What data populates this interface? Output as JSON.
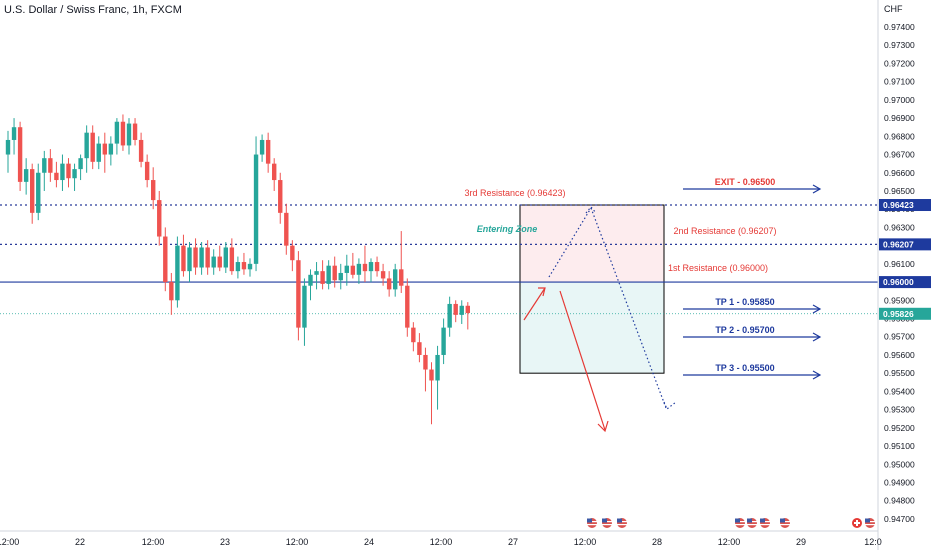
{
  "header": {
    "title": "U.S. Dollar / Swiss Franc, 1h, FXCM"
  },
  "colors": {
    "up": "#26a69a",
    "down": "#ef5350",
    "axis_text": "#131722",
    "blue": "#1e3a9e",
    "red": "#e53935",
    "teal": "#26a69a",
    "zone_upper": "#fdecee",
    "zone_lower": "#e8f6f6",
    "grid_dots": "#2a3c9a"
  },
  "chart_data": {
    "type": "candlestick",
    "title": "U.S. Dollar / Swiss Franc, 1h, FXCM",
    "currency": "CHF",
    "ylim": [
      0.9465,
      0.975
    ],
    "y_ticks": [
      "0.97400",
      "0.97300",
      "0.97200",
      "0.97100",
      "0.97000",
      "0.96900",
      "0.96800",
      "0.96700",
      "0.96600",
      "0.96500",
      "0.96400",
      "0.96300",
      "0.96200",
      "0.96100",
      "0.96000",
      "0.95900",
      "0.95800",
      "0.95700",
      "0.95600",
      "0.95500",
      "0.95400",
      "0.95300",
      "0.95200",
      "0.95100",
      "0.95000",
      "0.94900",
      "0.94800",
      "0.94700"
    ],
    "x_ticks": [
      {
        "label": "12:00",
        "bar": 0
      },
      {
        "label": "22",
        "bar": 12
      },
      {
        "label": "12:00",
        "bar": 24
      },
      {
        "label": "23",
        "bar": 36
      },
      {
        "label": "12:00",
        "bar": 48
      },
      {
        "label": "24",
        "bar": 60
      },
      {
        "label": "12:00",
        "bar": 72
      },
      {
        "label": "27",
        "bar": 84
      },
      {
        "label": "12:00",
        "bar": 96
      },
      {
        "label": "28",
        "bar": 108
      },
      {
        "label": "12:00",
        "bar": 120
      },
      {
        "label": "29",
        "bar": 132
      },
      {
        "label": "12:0",
        "bar": 144
      }
    ],
    "candles": [
      [
        0.967,
        0.9683,
        0.966,
        0.9678
      ],
      [
        0.9678,
        0.969,
        0.967,
        0.9685
      ],
      [
        0.9685,
        0.9688,
        0.965,
        0.9655
      ],
      [
        0.9655,
        0.9668,
        0.9648,
        0.9662
      ],
      [
        0.9662,
        0.9665,
        0.9632,
        0.9638
      ],
      [
        0.9638,
        0.9665,
        0.9634,
        0.966
      ],
      [
        0.966,
        0.9672,
        0.965,
        0.9668
      ],
      [
        0.9668,
        0.9673,
        0.9655,
        0.966
      ],
      [
        0.966,
        0.9666,
        0.9652,
        0.9656
      ],
      [
        0.9656,
        0.967,
        0.965,
        0.9665
      ],
      [
        0.9665,
        0.9668,
        0.9652,
        0.9657
      ],
      [
        0.9657,
        0.9665,
        0.965,
        0.9662
      ],
      [
        0.9662,
        0.967,
        0.9656,
        0.9668
      ],
      [
        0.9668,
        0.9686,
        0.966,
        0.9682
      ],
      [
        0.9682,
        0.9686,
        0.9662,
        0.9666
      ],
      [
        0.9666,
        0.968,
        0.9662,
        0.9676
      ],
      [
        0.9676,
        0.9682,
        0.966,
        0.967
      ],
      [
        0.967,
        0.968,
        0.9664,
        0.9676
      ],
      [
        0.9676,
        0.969,
        0.967,
        0.9688
      ],
      [
        0.9688,
        0.9692,
        0.9672,
        0.9675
      ],
      [
        0.9675,
        0.969,
        0.967,
        0.9687
      ],
      [
        0.9687,
        0.969,
        0.9675,
        0.9678
      ],
      [
        0.9678,
        0.9682,
        0.9663,
        0.9666
      ],
      [
        0.9666,
        0.967,
        0.9652,
        0.9656
      ],
      [
        0.9656,
        0.9663,
        0.964,
        0.9645
      ],
      [
        0.9645,
        0.965,
        0.962,
        0.9625
      ],
      [
        0.9625,
        0.963,
        0.9595,
        0.96
      ],
      [
        0.96,
        0.9605,
        0.9582,
        0.959
      ],
      [
        0.959,
        0.9625,
        0.9586,
        0.962
      ],
      [
        0.962,
        0.9626,
        0.9603,
        0.9606
      ],
      [
        0.9606,
        0.9622,
        0.96,
        0.9619
      ],
      [
        0.9619,
        0.9624,
        0.9604,
        0.9608
      ],
      [
        0.9608,
        0.9622,
        0.9604,
        0.9619
      ],
      [
        0.9619,
        0.9623,
        0.9604,
        0.9608
      ],
      [
        0.9608,
        0.9618,
        0.9604,
        0.9614
      ],
      [
        0.9614,
        0.962,
        0.9606,
        0.9608
      ],
      [
        0.9608,
        0.9622,
        0.9605,
        0.9619
      ],
      [
        0.9619,
        0.9624,
        0.9604,
        0.9606
      ],
      [
        0.9606,
        0.9614,
        0.9602,
        0.9611
      ],
      [
        0.9611,
        0.9616,
        0.9604,
        0.9607
      ],
      [
        0.9607,
        0.9613,
        0.9603,
        0.961
      ],
      [
        0.961,
        0.968,
        0.9606,
        0.967
      ],
      [
        0.967,
        0.9681,
        0.9666,
        0.9678
      ],
      [
        0.9678,
        0.9682,
        0.966,
        0.9665
      ],
      [
        0.9665,
        0.9668,
        0.965,
        0.9656
      ],
      [
        0.9656,
        0.966,
        0.9632,
        0.9638
      ],
      [
        0.9638,
        0.9643,
        0.9615,
        0.962
      ],
      [
        0.962,
        0.9623,
        0.9606,
        0.9612
      ],
      [
        0.9612,
        0.9617,
        0.9568,
        0.9575
      ],
      [
        0.9575,
        0.9602,
        0.9565,
        0.9598
      ],
      [
        0.9598,
        0.9607,
        0.959,
        0.9604
      ],
      [
        0.9604,
        0.9611,
        0.9596,
        0.9606
      ],
      [
        0.9606,
        0.9612,
        0.9596,
        0.9599
      ],
      [
        0.9599,
        0.9612,
        0.9596,
        0.9609
      ],
      [
        0.9609,
        0.9614,
        0.9597,
        0.9601
      ],
      [
        0.9601,
        0.961,
        0.9596,
        0.9605
      ],
      [
        0.9605,
        0.9615,
        0.9598,
        0.9609
      ],
      [
        0.9609,
        0.9616,
        0.9602,
        0.9604
      ],
      [
        0.9604,
        0.9613,
        0.9599,
        0.961
      ],
      [
        0.961,
        0.962,
        0.96,
        0.9606
      ],
      [
        0.9606,
        0.9613,
        0.96,
        0.9611
      ],
      [
        0.9611,
        0.9614,
        0.9603,
        0.9606
      ],
      [
        0.9606,
        0.961,
        0.9598,
        0.9602
      ],
      [
        0.9602,
        0.9606,
        0.9592,
        0.9596
      ],
      [
        0.9596,
        0.961,
        0.9592,
        0.9607
      ],
      [
        0.9607,
        0.9628,
        0.9594,
        0.9598
      ],
      [
        0.9598,
        0.9602,
        0.957,
        0.9575
      ],
      [
        0.9575,
        0.9578,
        0.9562,
        0.9567
      ],
      [
        0.9567,
        0.9572,
        0.9556,
        0.956
      ],
      [
        0.956,
        0.9564,
        0.954,
        0.9552
      ],
      [
        0.9552,
        0.9556,
        0.9522,
        0.9546
      ],
      [
        0.9546,
        0.9565,
        0.953,
        0.956
      ],
      [
        0.956,
        0.958,
        0.9555,
        0.9575
      ],
      [
        0.9575,
        0.9592,
        0.957,
        0.9588
      ],
      [
        0.9588,
        0.959,
        0.9578,
        0.9582
      ],
      [
        0.9582,
        0.959,
        0.9577,
        0.9587
      ],
      [
        0.9587,
        0.9589,
        0.9574,
        0.9583
      ]
    ],
    "levels": [
      {
        "value": 0.96423,
        "label": "3rd Resistance (0.96423)",
        "badge": "0.96423",
        "style": "dotted"
      },
      {
        "value": 0.96207,
        "label": "2nd Resistance (0.96207)",
        "badge": "0.96207",
        "style": "dotted"
      },
      {
        "value": 0.96,
        "label": "1st Resistance (0.96000)",
        "badge": "0.96000",
        "style": "solid"
      },
      {
        "value": 0.95826,
        "label": "",
        "badge": "0.95826",
        "style": "last"
      }
    ],
    "zone": {
      "label": "Entering Zone",
      "top": 0.96423,
      "mid": 0.96,
      "bottom": 0.955,
      "from_bar": 78,
      "to_bar": 98
    },
    "targets": [
      {
        "label": "EXIT - 0.96500",
        "value": 0.965,
        "color": "red"
      },
      {
        "label": "TP 1 - 0.95850",
        "value": 0.9585,
        "color": "blue"
      },
      {
        "label": "TP 2 - 0.95700",
        "value": 0.957,
        "color": "blue"
      },
      {
        "label": "TP 3 - 0.95500",
        "value": 0.955,
        "color": "blue"
      }
    ]
  }
}
